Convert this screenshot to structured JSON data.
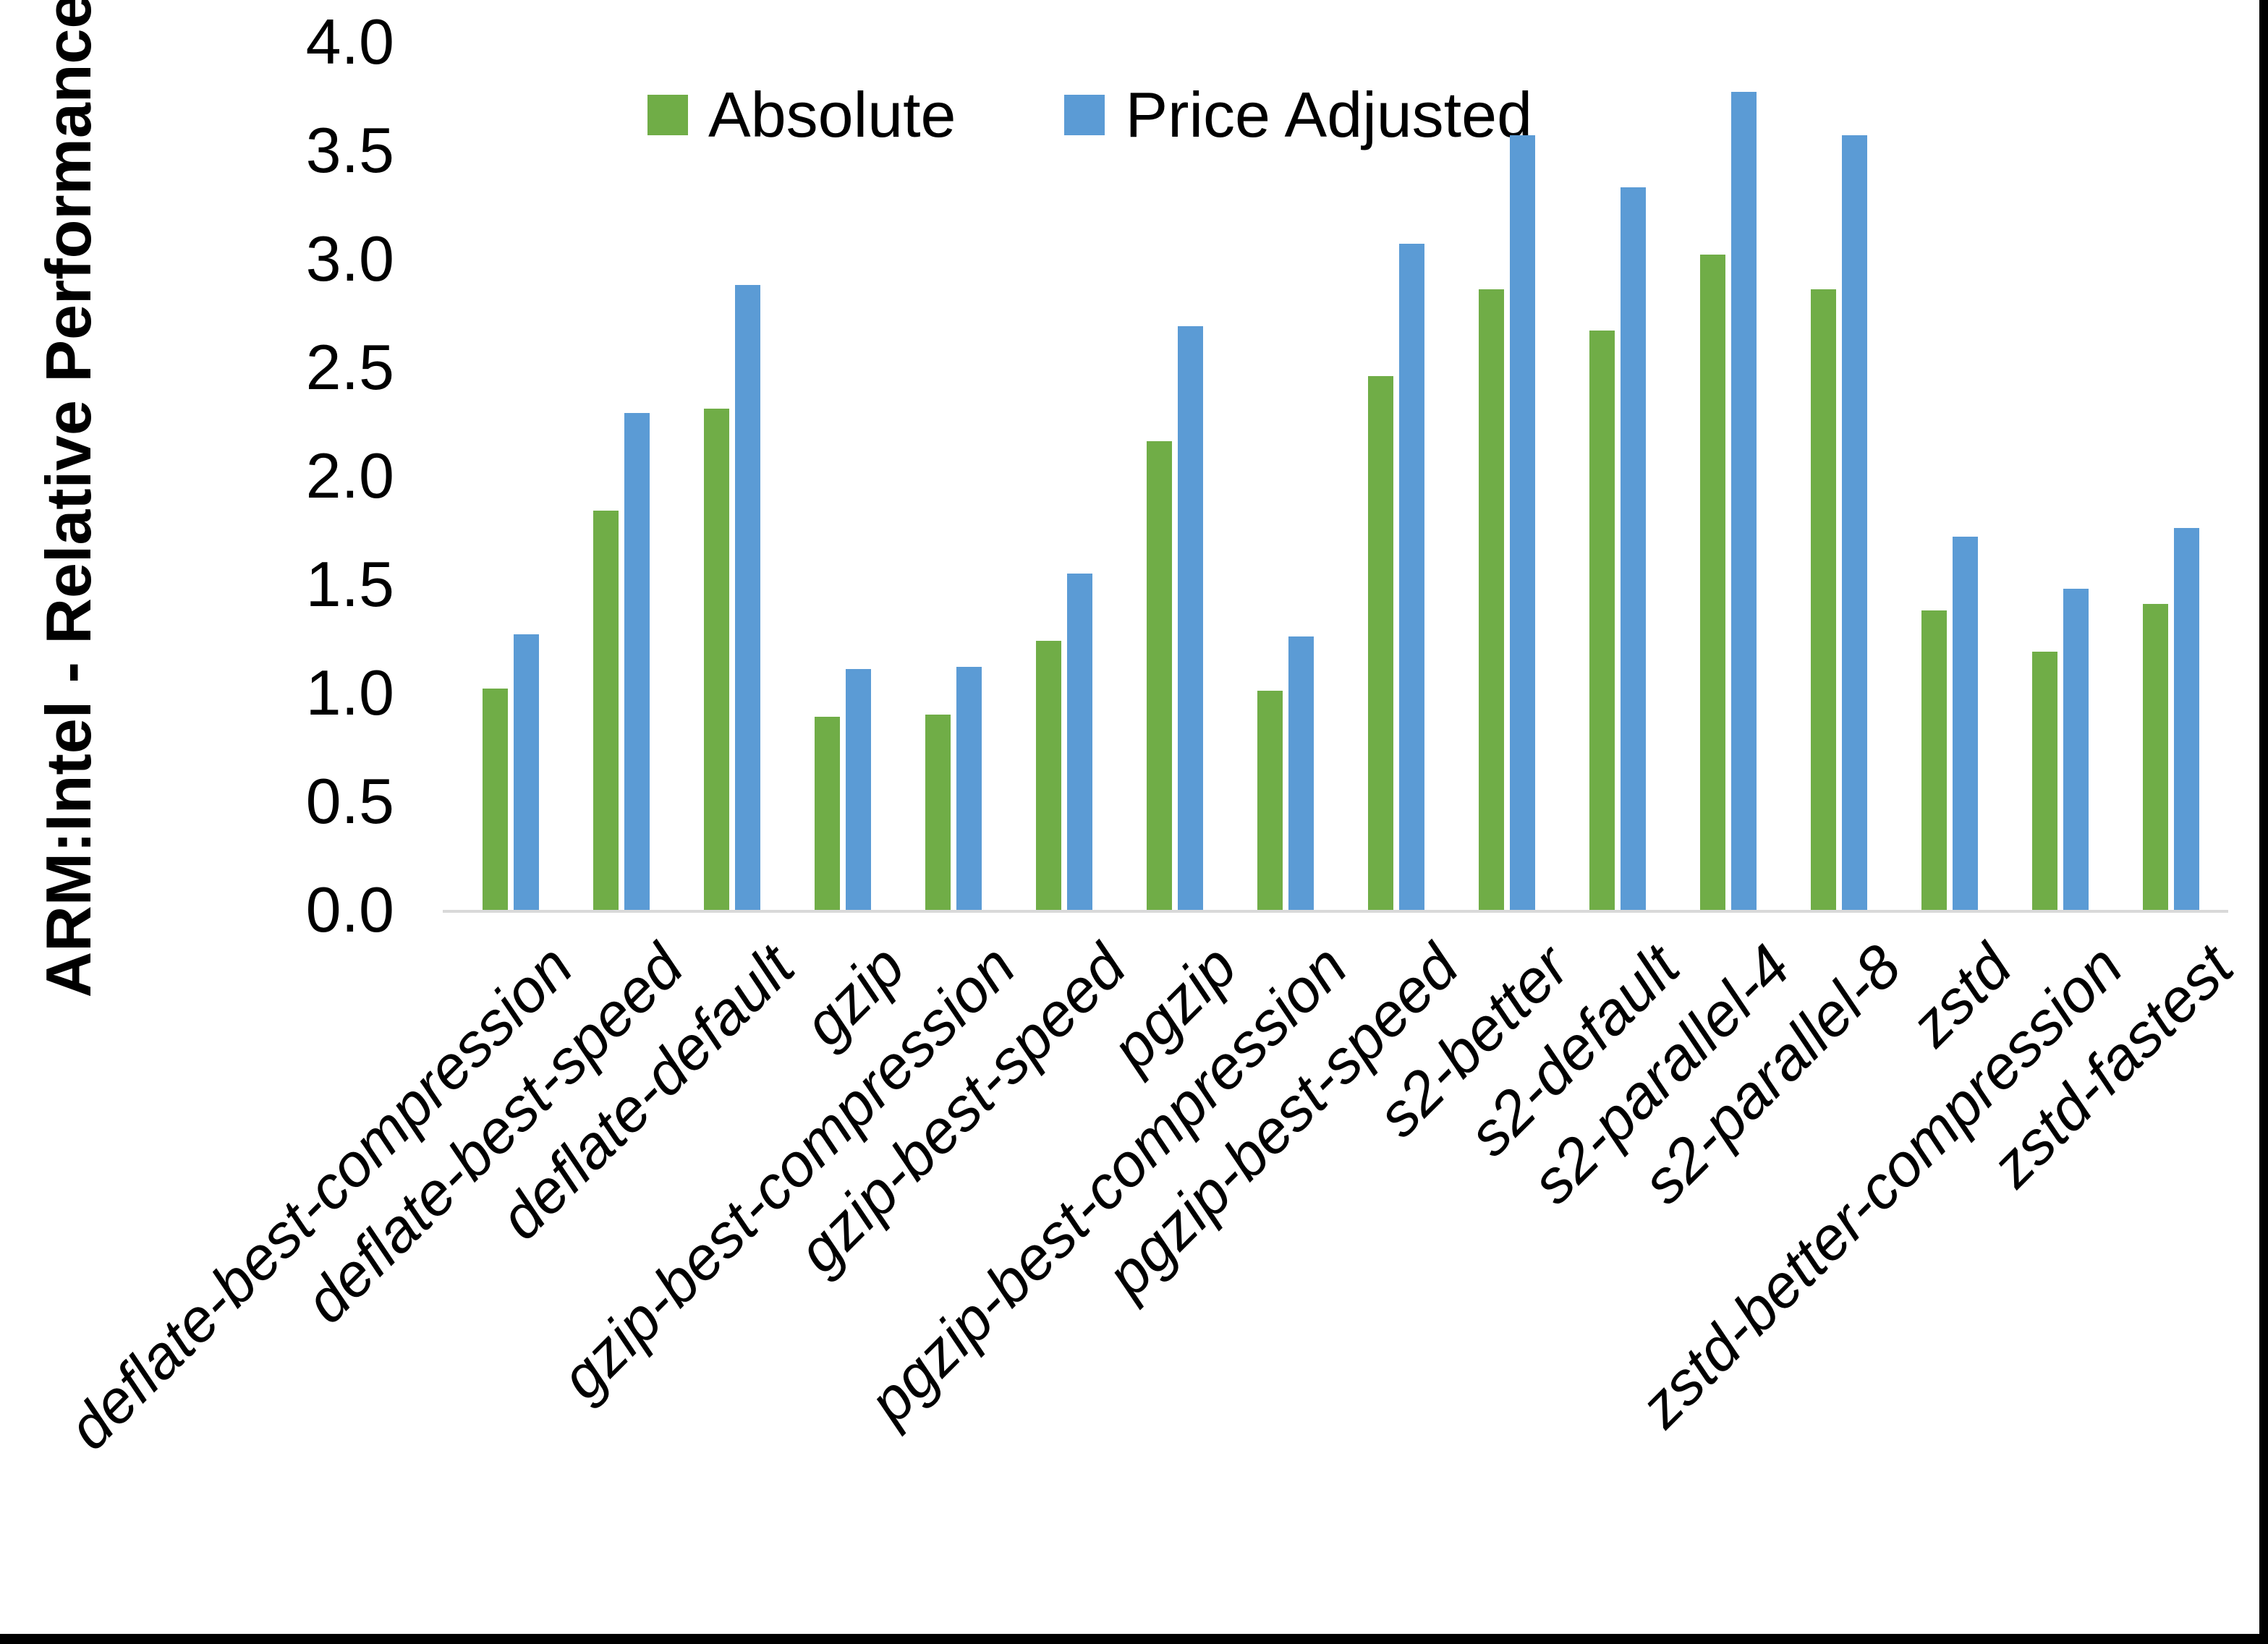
{
  "y_axis_title": "ARM:Intel - Relative Performance",
  "colors": {
    "absolute_green": "#70AD47",
    "price_adjusted_blue": "#5B9BD5",
    "axis_line_gray": "#D9D9D9",
    "text_black": "#000000"
  },
  "chart_data": {
    "type": "bar",
    "title": "",
    "xlabel": "",
    "ylabel": "ARM:Intel - Relative Performance",
    "ylim": [
      0.0,
      4.0
    ],
    "ytick_labels": [
      "0.0",
      "0.5",
      "1.0",
      "1.5",
      "2.0",
      "2.5",
      "3.0",
      "3.5",
      "4.0"
    ],
    "grid": false,
    "legend_position": "top-center",
    "categories": [
      "deflate-best-compression",
      "deflate-best-speed",
      "deflate-default",
      "gzip",
      "gzip-best-compression",
      "gzip-best-speed",
      "pgzip",
      "pgzip-best-compression",
      "pgzip-best-speed",
      "s2-better",
      "s2-default",
      "s2-parallel-4",
      "s2-parallel-8",
      "zstd",
      "zstd-better-compression",
      "zstd-fastest"
    ],
    "series": [
      {
        "name": "Absolute",
        "color": "#70AD47",
        "values": [
          1.02,
          1.84,
          2.31,
          0.89,
          0.9,
          1.24,
          2.16,
          1.01,
          2.46,
          2.86,
          2.67,
          3.02,
          2.86,
          1.38,
          1.19,
          1.41
        ]
      },
      {
        "name": "Price Adjusted",
        "color": "#5B9BD5",
        "values": [
          1.27,
          2.29,
          2.88,
          1.11,
          1.12,
          1.55,
          2.69,
          1.26,
          3.07,
          3.57,
          3.33,
          3.77,
          3.57,
          1.72,
          1.48,
          1.76
        ]
      }
    ]
  }
}
